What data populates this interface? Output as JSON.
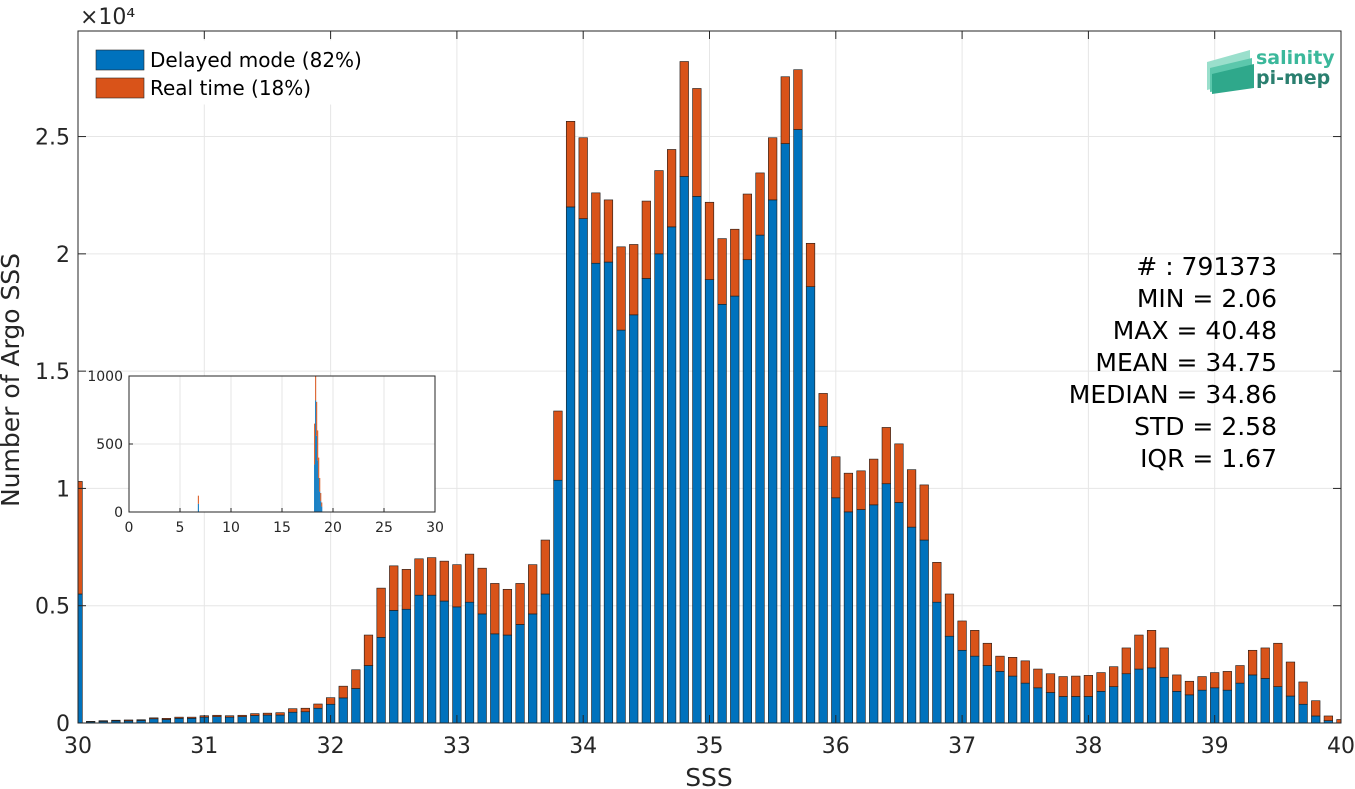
{
  "colors": {
    "delayed": "#0072BD",
    "realtime": "#D95319",
    "grid": "#e6e6e6",
    "axis": "#262626",
    "logo1": "#3bb89b",
    "logo2": "#2a7f6f"
  },
  "logo": {
    "line1": "salinity",
    "line2": "pi-mep",
    "icon": "wave-layers-icon"
  },
  "legend": {
    "delayed": "Delayed mode (82%)",
    "realtime": "Real time (18%)"
  },
  "stats": [
    "# : 791373",
    "MIN = 2.06",
    "MAX =  40.48",
    "MEAN = 34.75",
    "MEDIAN = 34.86",
    "STD = 2.58",
    "IQR = 1.67"
  ],
  "chart_data": [
    {
      "type": "bar",
      "stacked": true,
      "xlabel": "SSS",
      "ylabel": "Number of Argo SSS",
      "y_exponent_label": "×10⁴",
      "xlim": [
        30,
        40
      ],
      "ylim": [
        0,
        29500
      ],
      "xticks": [
        30,
        31,
        32,
        33,
        34,
        35,
        36,
        37,
        38,
        39,
        40
      ],
      "yticks": [
        0,
        5000,
        10000,
        15000,
        20000,
        25000
      ],
      "ytick_labels": [
        "0",
        "0.5",
        "1",
        "1.5",
        "2",
        "2.5"
      ],
      "grid": true,
      "legend_position": "top-left",
      "bin_width": 0.1,
      "x": [
        30.0,
        30.1,
        30.2,
        30.3,
        30.4,
        30.5,
        30.6,
        30.7,
        30.8,
        30.9,
        31.0,
        31.1,
        31.2,
        31.3,
        31.4,
        31.5,
        31.6,
        31.7,
        31.8,
        31.9,
        32.0,
        32.1,
        32.2,
        32.3,
        32.4,
        32.5,
        32.6,
        32.7,
        32.8,
        32.9,
        33.0,
        33.1,
        33.2,
        33.3,
        33.4,
        33.5,
        33.6,
        33.7,
        33.8,
        33.9,
        34.0,
        34.1,
        34.2,
        34.3,
        34.4,
        34.5,
        34.6,
        34.7,
        34.8,
        34.9,
        35.0,
        35.1,
        35.2,
        35.3,
        35.4,
        35.5,
        35.6,
        35.7,
        35.8,
        35.9,
        36.0,
        36.1,
        36.2,
        36.3,
        36.4,
        36.5,
        36.6,
        36.7,
        36.8,
        36.9,
        37.0,
        37.1,
        37.2,
        37.3,
        37.4,
        37.5,
        37.6,
        37.7,
        37.8,
        37.9,
        38.0,
        38.1,
        38.2,
        38.3,
        38.4,
        38.5,
        38.6,
        38.7,
        38.8,
        38.9,
        39.0,
        39.1,
        39.2,
        39.3,
        39.4,
        39.5,
        39.6,
        39.7,
        39.8,
        39.9,
        40.0
      ],
      "series": [
        {
          "name": "Delayed mode (82%)",
          "values": [
            5500,
            50,
            70,
            90,
            90,
            110,
            180,
            150,
            200,
            200,
            250,
            270,
            250,
            270,
            320,
            340,
            340,
            460,
            480,
            630,
            800,
            1070,
            1470,
            2450,
            3650,
            4800,
            4850,
            5450,
            5450,
            5200,
            4950,
            5150,
            4650,
            3800,
            3750,
            4200,
            4650,
            5500,
            10350,
            22000,
            21500,
            19600,
            19650,
            16750,
            17400,
            18950,
            20000,
            21150,
            23300,
            22450,
            18900,
            17850,
            18200,
            19750,
            20800,
            22300,
            24700,
            25300,
            18600,
            12650,
            9600,
            9000,
            9100,
            9300,
            10200,
            9400,
            8350,
            7800,
            5150,
            3700,
            3100,
            2850,
            2450,
            2200,
            2000,
            1700,
            1500,
            1300,
            1130,
            1130,
            1130,
            1350,
            1550,
            2100,
            2300,
            2350,
            1950,
            1350,
            1200,
            1400,
            1500,
            1400,
            1700,
            2050,
            1900,
            1550,
            1150,
            800,
            300,
            100,
            0
          ]
        },
        {
          "name": "Real time (18%)",
          "values": [
            4800,
            20,
            30,
            30,
            40,
            30,
            40,
            50,
            50,
            50,
            60,
            60,
            60,
            60,
            80,
            80,
            100,
            150,
            150,
            180,
            280,
            500,
            800,
            1300,
            2100,
            1900,
            1700,
            1550,
            1600,
            1700,
            1800,
            2050,
            1950,
            2150,
            1950,
            1750,
            2100,
            2300,
            2950,
            3650,
            3450,
            3000,
            2650,
            3550,
            3000,
            3300,
            3550,
            3300,
            4900,
            4600,
            3300,
            2800,
            2850,
            2800,
            2650,
            2650,
            2850,
            2550,
            1850,
            1400,
            1750,
            1650,
            1650,
            1950,
            2400,
            2500,
            2450,
            2350,
            1700,
            1800,
            1250,
            1100,
            950,
            650,
            800,
            950,
            800,
            800,
            850,
            870,
            900,
            800,
            850,
            1100,
            1450,
            1600,
            1250,
            700,
            580,
            580,
            650,
            800,
            750,
            1050,
            1300,
            1850,
            1450,
            950,
            650,
            200,
            150
          ]
        }
      ]
    },
    {
      "type": "bar",
      "stacked": true,
      "inset": true,
      "xlim": [
        0,
        30
      ],
      "ylim": [
        0,
        1000
      ],
      "xticks": [
        0,
        5,
        10,
        15,
        20,
        25,
        30
      ],
      "yticks": [
        0,
        500,
        1000
      ],
      "bin_width": 0.1,
      "spikes": [
        {
          "x": 6.8,
          "delayed": 60,
          "realtime": 60
        },
        {
          "x": 18.2,
          "delayed": 350,
          "realtime": 300
        },
        {
          "x": 18.3,
          "delayed": 820,
          "realtime": 180
        },
        {
          "x": 18.4,
          "delayed": 560,
          "realtime": 250
        },
        {
          "x": 18.5,
          "delayed": 380,
          "realtime": 220
        },
        {
          "x": 18.6,
          "delayed": 250,
          "realtime": 150
        },
        {
          "x": 18.7,
          "delayed": 150,
          "realtime": 100
        },
        {
          "x": 18.8,
          "delayed": 80,
          "realtime": 60
        },
        {
          "x": 18.9,
          "delayed": 40,
          "realtime": 30
        }
      ]
    }
  ]
}
